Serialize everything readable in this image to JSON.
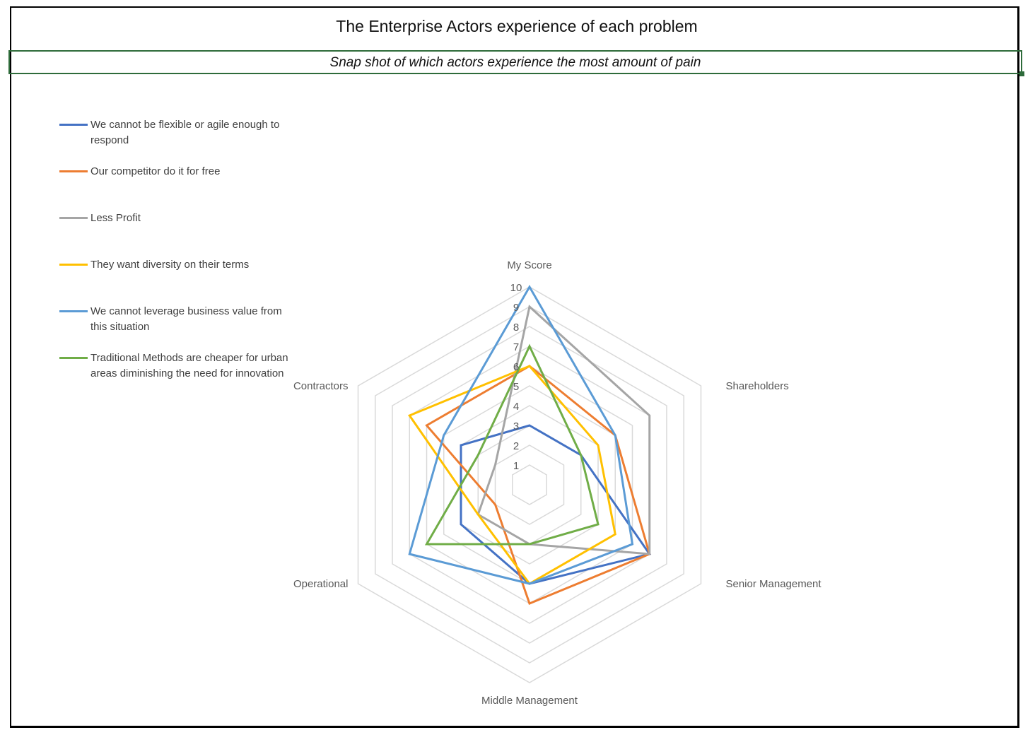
{
  "title": "The Enterprise Actors experience of each problem",
  "subtitle": "Snap shot of which actors experience the most amount of pain",
  "colors": {
    "series": [
      "#4472c4",
      "#ed7d31",
      "#a5a5a5",
      "#ffc000",
      "#5b9bd5",
      "#70ad47"
    ],
    "grid": "#d9d9d9"
  },
  "chart_data": {
    "type": "radar",
    "categories": [
      "My Score",
      "Shareholders",
      "Senior Management",
      "Middle Management",
      "Operational",
      "Contractors"
    ],
    "range": [
      0,
      10
    ],
    "ticks": [
      "1",
      "2",
      "3",
      "4",
      "5",
      "6",
      "7",
      "8",
      "9",
      "10"
    ],
    "grid": true,
    "legend_position": "top-left",
    "series": [
      {
        "name": "We cannot be flexible or agile enough to respond",
        "values": [
          3,
          3,
          7,
          5,
          4,
          4
        ]
      },
      {
        "name": "Our competitor do it for free",
        "values": [
          6,
          5,
          7,
          6,
          2,
          6
        ]
      },
      {
        "name": "Less Profit",
        "values": [
          9,
          7,
          7,
          3,
          3,
          2
        ]
      },
      {
        "name": "They want diversity on their terms",
        "values": [
          6,
          4,
          5,
          5,
          3,
          7
        ]
      },
      {
        "name": "We cannot leverage business value from this situation",
        "values": [
          10,
          5,
          6,
          5,
          7,
          5
        ]
      },
      {
        "name": "Traditional Methods are cheaper for urban areas diminishing the need for innovation",
        "values": [
          7,
          3,
          4,
          3,
          6,
          3
        ]
      }
    ]
  }
}
